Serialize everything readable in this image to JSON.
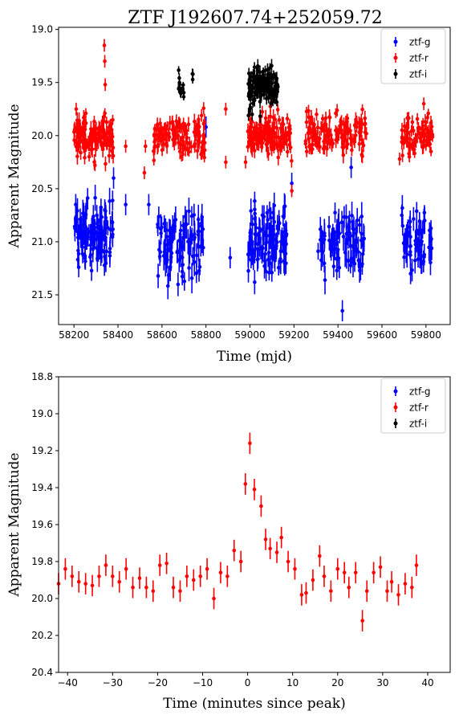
{
  "figure_title": "ZTF J192607.74+252059.72",
  "legend_entries": [
    "ztf-g",
    "ztf-r",
    "ztf-i"
  ],
  "colors": {
    "ztf-g": "#0000ff",
    "ztf-r": "#ff0000",
    "ztf-i": "#000000"
  },
  "chart_data": [
    {
      "type": "scatter",
      "title": "ZTF J192607.74+252059.72",
      "xlabel": "Time (mjd)",
      "ylabel": "Apparent Magnitude",
      "xlim": [
        58130,
        59910
      ],
      "ylim": [
        21.78,
        18.98
      ],
      "y_inverted": true,
      "xticks": [
        58200,
        58400,
        58600,
        58800,
        59000,
        59200,
        59400,
        59600,
        59800
      ],
      "yticks": [
        19.0,
        19.5,
        20.0,
        20.5,
        21.0,
        21.5
      ],
      "xtick_labels": [
        "58200",
        "58400",
        "58600",
        "58800",
        "59000",
        "59200",
        "59400",
        "59600",
        "59800"
      ],
      "ytick_labels": [
        "19.0",
        "19.5",
        "20.0",
        "20.5",
        "21.0",
        "21.5"
      ],
      "grid": false,
      "legend_position": "top-right",
      "series": [
        {
          "name": "ztf-g",
          "marker": "dot-with-errorbar",
          "seasons": [
            {
              "x_range": [
                58200,
                58380
              ],
              "mag_mean": 20.95,
              "mag_scatter": 0.15,
              "err": 0.1,
              "n": 110
            },
            {
              "x_range": [
                58580,
                58790
              ],
              "mag_mean": 21.02,
              "mag_scatter": 0.15,
              "err": 0.11,
              "n": 95
            },
            {
              "x_range": [
                58990,
                59170
              ],
              "mag_mean": 20.98,
              "mag_scatter": 0.15,
              "err": 0.1,
              "n": 110
            },
            {
              "x_range": [
                59300,
                59520
              ],
              "mag_mean": 21.0,
              "mag_scatter": 0.15,
              "err": 0.11,
              "n": 90
            },
            {
              "x_range": [
                59690,
                59830
              ],
              "mag_mean": 20.98,
              "mag_scatter": 0.14,
              "err": 0.1,
              "n": 60
            }
          ],
          "notable_points": [
            {
              "x": 58208,
              "y": 20.65
            },
            {
              "x": 58340,
              "y": 20.7
            },
            {
              "x": 58380,
              "y": 20.4
            },
            {
              "x": 58435,
              "y": 20.65
            },
            {
              "x": 58540,
              "y": 20.65
            },
            {
              "x": 58800,
              "y": 19.92
            },
            {
              "x": 58910,
              "y": 21.15
            },
            {
              "x": 59190,
              "y": 20.45
            },
            {
              "x": 59420,
              "y": 21.65
            },
            {
              "x": 59460,
              "y": 20.3
            },
            {
              "x": 59690,
              "y": 20.75
            },
            {
              "x": 59730,
              "y": 21.3
            }
          ]
        },
        {
          "name": "ztf-r",
          "marker": "dot-with-errorbar",
          "seasons": [
            {
              "x_range": [
                58200,
                58380
              ],
              "mag_mean": 20.0,
              "mag_scatter": 0.1,
              "err": 0.06,
              "n": 140
            },
            {
              "x_range": [
                58560,
                58800
              ],
              "mag_mean": 20.02,
              "mag_scatter": 0.1,
              "err": 0.06,
              "n": 130
            },
            {
              "x_range": [
                58990,
                59190
              ],
              "mag_mean": 20.0,
              "mag_scatter": 0.1,
              "err": 0.06,
              "n": 140
            },
            {
              "x_range": [
                59250,
                59530
              ],
              "mag_mean": 19.98,
              "mag_scatter": 0.09,
              "err": 0.06,
              "n": 130
            },
            {
              "x_range": [
                59690,
                59830
              ],
              "mag_mean": 20.0,
              "mag_scatter": 0.1,
              "err": 0.06,
              "n": 80
            }
          ],
          "notable_points": [
            {
              "x": 58338,
              "y": 19.15
            },
            {
              "x": 58340,
              "y": 19.3
            },
            {
              "x": 58342,
              "y": 19.52
            },
            {
              "x": 58210,
              "y": 19.75
            },
            {
              "x": 58435,
              "y": 20.1
            },
            {
              "x": 58525,
              "y": 20.1
            },
            {
              "x": 58520,
              "y": 20.35
            },
            {
              "x": 58890,
              "y": 19.75
            },
            {
              "x": 58890,
              "y": 20.25
            },
            {
              "x": 58980,
              "y": 20.25
            },
            {
              "x": 59190,
              "y": 20.52
            },
            {
              "x": 59790,
              "y": 19.7
            },
            {
              "x": 59680,
              "y": 20.22
            }
          ]
        },
        {
          "name": "ztf-i",
          "marker": "dot-with-errorbar",
          "seasons": [
            {
              "x_range": [
                58675,
                58700
              ],
              "mag_mean": 19.55,
              "mag_scatter": 0.05,
              "err": 0.04,
              "n": 15
            },
            {
              "x_range": [
                58730,
                58745
              ],
              "mag_mean": 19.45,
              "mag_scatter": 0.02,
              "err": 0.04,
              "n": 3
            },
            {
              "x_range": [
                58990,
                59130
              ],
              "mag_mean": 19.55,
              "mag_scatter": 0.08,
              "err": 0.05,
              "n": 160
            }
          ],
          "notable_points": [
            {
              "x": 59010,
              "y": 19.8
            },
            {
              "x": 59080,
              "y": 19.38
            }
          ]
        }
      ]
    },
    {
      "type": "scatter",
      "title": "",
      "xlabel": "Time (minutes since peak)",
      "ylabel": "Apparent Magnitude",
      "xlim": [
        -42,
        45
      ],
      "ylim": [
        20.4,
        18.8
      ],
      "y_inverted": true,
      "xticks": [
        -40,
        -30,
        -20,
        -10,
        0,
        10,
        20,
        30,
        40
      ],
      "yticks": [
        18.8,
        19.0,
        19.2,
        19.4,
        19.6,
        19.8,
        20.0,
        20.2,
        20.4
      ],
      "xtick_labels": [
        "−40",
        "−30",
        "−20",
        "−10",
        "0",
        "10",
        "20",
        "30",
        "40"
      ],
      "ytick_labels": [
        "18.8",
        "19.0",
        "19.2",
        "19.4",
        "19.6",
        "19.8",
        "20.0",
        "20.2",
        "20.4"
      ],
      "grid": false,
      "legend_position": "top-right",
      "series": [
        {
          "name": "ztf-g",
          "points": []
        },
        {
          "name": "ztf-r",
          "err": 0.058,
          "points": [
            [
              -42,
              19.92
            ],
            [
              -40.5,
              19.84
            ],
            [
              -39,
              19.88
            ],
            [
              -37.5,
              19.91
            ],
            [
              -36,
              19.92
            ],
            [
              -34.5,
              19.93
            ],
            [
              -33,
              19.88
            ],
            [
              -31.5,
              19.82
            ],
            [
              -30,
              19.88
            ],
            [
              -28.5,
              19.91
            ],
            [
              -27,
              19.84
            ],
            [
              -25.5,
              19.94
            ],
            [
              -24,
              19.89
            ],
            [
              -22.5,
              19.94
            ],
            [
              -21,
              19.96
            ],
            [
              -19.5,
              19.82
            ],
            [
              -18,
              19.81
            ],
            [
              -16.5,
              19.94
            ],
            [
              -15,
              19.96
            ],
            [
              -13.5,
              19.88
            ],
            [
              -12,
              19.9
            ],
            [
              -10.5,
              19.88
            ],
            [
              -9,
              19.84
            ],
            [
              -7.5,
              20.0
            ],
            [
              -6,
              19.86
            ],
            [
              -4.5,
              19.88
            ],
            [
              -3,
              19.74
            ],
            [
              -1.5,
              19.8
            ],
            [
              -0.5,
              19.38
            ],
            [
              0.5,
              19.16
            ],
            [
              1.5,
              19.41
            ],
            [
              3,
              19.5
            ],
            [
              4,
              19.68
            ],
            [
              5,
              19.73
            ],
            [
              6.5,
              19.75
            ],
            [
              7.5,
              19.67
            ],
            [
              9,
              19.8
            ],
            [
              10.5,
              19.84
            ],
            [
              12,
              19.98
            ],
            [
              13,
              19.97
            ],
            [
              14.5,
              19.9
            ],
            [
              16,
              19.77
            ],
            [
              17,
              19.88
            ],
            [
              18.5,
              19.96
            ],
            [
              20,
              19.84
            ],
            [
              21.5,
              19.86
            ],
            [
              22.5,
              19.94
            ],
            [
              24,
              19.86
            ],
            [
              25.5,
              20.12
            ],
            [
              26.5,
              19.96
            ],
            [
              28,
              19.86
            ],
            [
              29.5,
              19.83
            ],
            [
              31,
              19.96
            ],
            [
              32,
              19.91
            ],
            [
              33.5,
              19.98
            ],
            [
              35,
              19.92
            ],
            [
              36.5,
              19.94
            ],
            [
              37.5,
              19.82
            ]
          ]
        },
        {
          "name": "ztf-i",
          "points": []
        }
      ]
    }
  ]
}
